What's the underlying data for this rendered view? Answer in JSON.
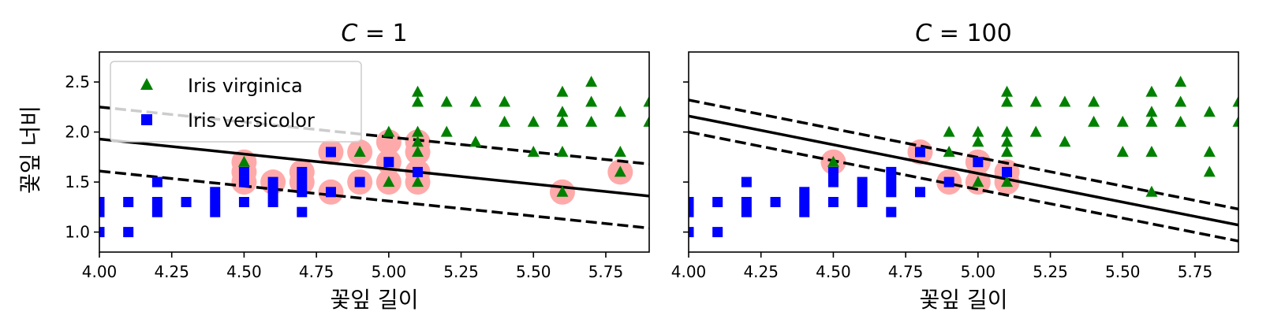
{
  "ylabel": "꽃잎 너비",
  "legend": {
    "entries": [
      {
        "label": "Iris virginica",
        "marker": "triangle",
        "color": "#008000"
      },
      {
        "label": "Iris versicolor",
        "marker": "square",
        "color": "#0000ff"
      }
    ],
    "placement": "upper-left"
  },
  "chart_data": [
    {
      "type": "scatter",
      "title_italic": "C",
      "title_rest": " = 1",
      "xlabel": "꽃잎 길이",
      "ylabel": "꽃잎 너비",
      "xlim": [
        4.0,
        5.9
      ],
      "ylim": [
        0.8,
        2.8
      ],
      "xticks": [
        "4.00",
        "4.25",
        "4.50",
        "4.75",
        "5.00",
        "5.25",
        "5.50",
        "5.75"
      ],
      "yticks": [
        "1.0",
        "1.5",
        "2.0",
        "2.5"
      ],
      "show_ylabel": true,
      "show_legend": true,
      "decision_line": [
        [
          4.0,
          1.93
        ],
        [
          5.9,
          1.36
        ]
      ],
      "margin_lines": [
        [
          [
            4.0,
            2.25
          ],
          [
            5.9,
            1.68
          ]
        ],
        [
          [
            4.0,
            1.61
          ],
          [
            5.9,
            1.04
          ]
        ]
      ],
      "support_vectors": [
        [
          4.5,
          1.7
        ],
        [
          4.5,
          1.6
        ],
        [
          4.5,
          1.5
        ],
        [
          4.6,
          1.5
        ],
        [
          4.7,
          1.6
        ],
        [
          4.7,
          1.5
        ],
        [
          4.8,
          1.8
        ],
        [
          4.8,
          1.4
        ],
        [
          4.9,
          1.8
        ],
        [
          4.9,
          1.5
        ],
        [
          5.0,
          1.9
        ],
        [
          5.0,
          1.7
        ],
        [
          5.0,
          1.5
        ],
        [
          5.1,
          1.9
        ],
        [
          5.1,
          1.8
        ],
        [
          5.1,
          1.6
        ],
        [
          5.1,
          1.5
        ],
        [
          5.6,
          1.4
        ],
        [
          5.8,
          1.6
        ]
      ],
      "series": [
        {
          "name": "Iris virginica",
          "marker": "triangle",
          "color": "#008000",
          "points": [
            [
              4.5,
              1.7
            ],
            [
              4.9,
              1.8
            ],
            [
              5.0,
              2.0
            ],
            [
              5.0,
              1.5
            ],
            [
              5.1,
              2.4
            ],
            [
              5.1,
              2.3
            ],
            [
              5.1,
              2.0
            ],
            [
              5.1,
              1.9
            ],
            [
              5.1,
              1.8
            ],
            [
              5.1,
              1.5
            ],
            [
              5.2,
              2.3
            ],
            [
              5.2,
              2.0
            ],
            [
              5.3,
              2.3
            ],
            [
              5.3,
              1.9
            ],
            [
              5.4,
              2.3
            ],
            [
              5.4,
              2.1
            ],
            [
              5.5,
              2.1
            ],
            [
              5.5,
              1.8
            ],
            [
              5.6,
              2.4
            ],
            [
              5.6,
              2.2
            ],
            [
              5.6,
              2.1
            ],
            [
              5.6,
              1.8
            ],
            [
              5.6,
              1.4
            ],
            [
              5.7,
              2.5
            ],
            [
              5.7,
              2.3
            ],
            [
              5.7,
              2.1
            ],
            [
              5.8,
              2.2
            ],
            [
              5.8,
              1.8
            ],
            [
              5.8,
              1.6
            ],
            [
              5.9,
              2.3
            ],
            [
              5.9,
              2.1
            ]
          ]
        },
        {
          "name": "Iris versicolor",
          "marker": "square",
          "color": "#0000ff",
          "points": [
            [
              4.0,
              1.3
            ],
            [
              4.0,
              1.2
            ],
            [
              4.0,
              1.0
            ],
            [
              4.1,
              1.3
            ],
            [
              4.1,
              1.0
            ],
            [
              4.2,
              1.5
            ],
            [
              4.2,
              1.3
            ],
            [
              4.2,
              1.2
            ],
            [
              4.3,
              1.3
            ],
            [
              4.4,
              1.4
            ],
            [
              4.4,
              1.3
            ],
            [
              4.4,
              1.2
            ],
            [
              4.5,
              1.6
            ],
            [
              4.5,
              1.5
            ],
            [
              4.5,
              1.3
            ],
            [
              4.6,
              1.5
            ],
            [
              4.6,
              1.4
            ],
            [
              4.6,
              1.3
            ],
            [
              4.7,
              1.6
            ],
            [
              4.7,
              1.5
            ],
            [
              4.7,
              1.4
            ],
            [
              4.7,
              1.2
            ],
            [
              4.8,
              1.8
            ],
            [
              4.8,
              1.4
            ],
            [
              4.9,
              1.5
            ],
            [
              5.0,
              1.7
            ],
            [
              5.1,
              1.6
            ]
          ]
        }
      ]
    },
    {
      "type": "scatter",
      "title_italic": "C",
      "title_rest": " = 100",
      "xlabel": "꽃잎 길이",
      "ylabel": "",
      "xlim": [
        4.0,
        5.9
      ],
      "ylim": [
        0.8,
        2.8
      ],
      "xticks": [
        "4.00",
        "4.25",
        "4.50",
        "4.75",
        "5.00",
        "5.25",
        "5.50",
        "5.75"
      ],
      "yticks": [
        "1.0",
        "1.5",
        "2.0",
        "2.5"
      ],
      "show_ylabel": false,
      "show_legend": false,
      "decision_line": [
        [
          4.0,
          2.16
        ],
        [
          5.9,
          1.07
        ]
      ],
      "margin_lines": [
        [
          [
            4.0,
            2.32
          ],
          [
            5.9,
            1.23
          ]
        ],
        [
          [
            4.0,
            2.0
          ],
          [
            5.9,
            0.91
          ]
        ]
      ],
      "support_vectors": [
        [
          4.5,
          1.7
        ],
        [
          4.8,
          1.8
        ],
        [
          4.9,
          1.5
        ],
        [
          5.0,
          1.7
        ],
        [
          5.0,
          1.5
        ],
        [
          5.1,
          1.6
        ],
        [
          5.1,
          1.5
        ]
      ],
      "series": [
        {
          "name": "Iris virginica",
          "marker": "triangle",
          "color": "#008000",
          "points": [
            [
              4.5,
              1.7
            ],
            [
              4.9,
              2.0
            ],
            [
              4.9,
              1.8
            ],
            [
              5.0,
              2.0
            ],
            [
              5.0,
              1.9
            ],
            [
              5.0,
              1.5
            ],
            [
              5.1,
              2.4
            ],
            [
              5.1,
              2.3
            ],
            [
              5.1,
              2.0
            ],
            [
              5.1,
              1.9
            ],
            [
              5.1,
              1.8
            ],
            [
              5.1,
              1.5
            ],
            [
              5.2,
              2.3
            ],
            [
              5.2,
              2.0
            ],
            [
              5.3,
              2.3
            ],
            [
              5.3,
              1.9
            ],
            [
              5.4,
              2.3
            ],
            [
              5.4,
              2.1
            ],
            [
              5.5,
              2.1
            ],
            [
              5.5,
              1.8
            ],
            [
              5.6,
              2.4
            ],
            [
              5.6,
              2.2
            ],
            [
              5.6,
              2.1
            ],
            [
              5.6,
              1.8
            ],
            [
              5.6,
              1.4
            ],
            [
              5.7,
              2.5
            ],
            [
              5.7,
              2.3
            ],
            [
              5.7,
              2.1
            ],
            [
              5.8,
              2.2
            ],
            [
              5.8,
              1.8
            ],
            [
              5.8,
              1.6
            ],
            [
              5.9,
              2.3
            ],
            [
              5.9,
              2.1
            ]
          ]
        },
        {
          "name": "Iris versicolor",
          "marker": "square",
          "color": "#0000ff",
          "points": [
            [
              4.0,
              1.3
            ],
            [
              4.0,
              1.2
            ],
            [
              4.0,
              1.0
            ],
            [
              4.1,
              1.3
            ],
            [
              4.1,
              1.0
            ],
            [
              4.2,
              1.5
            ],
            [
              4.2,
              1.3
            ],
            [
              4.2,
              1.2
            ],
            [
              4.3,
              1.3
            ],
            [
              4.4,
              1.4
            ],
            [
              4.4,
              1.3
            ],
            [
              4.4,
              1.2
            ],
            [
              4.5,
              1.6
            ],
            [
              4.5,
              1.5
            ],
            [
              4.5,
              1.3
            ],
            [
              4.6,
              1.5
            ],
            [
              4.6,
              1.4
            ],
            [
              4.6,
              1.3
            ],
            [
              4.7,
              1.6
            ],
            [
              4.7,
              1.5
            ],
            [
              4.7,
              1.4
            ],
            [
              4.7,
              1.2
            ],
            [
              4.8,
              1.8
            ],
            [
              4.8,
              1.4
            ],
            [
              4.9,
              1.5
            ],
            [
              5.0,
              1.7
            ],
            [
              5.1,
              1.6
            ]
          ]
        }
      ]
    }
  ]
}
